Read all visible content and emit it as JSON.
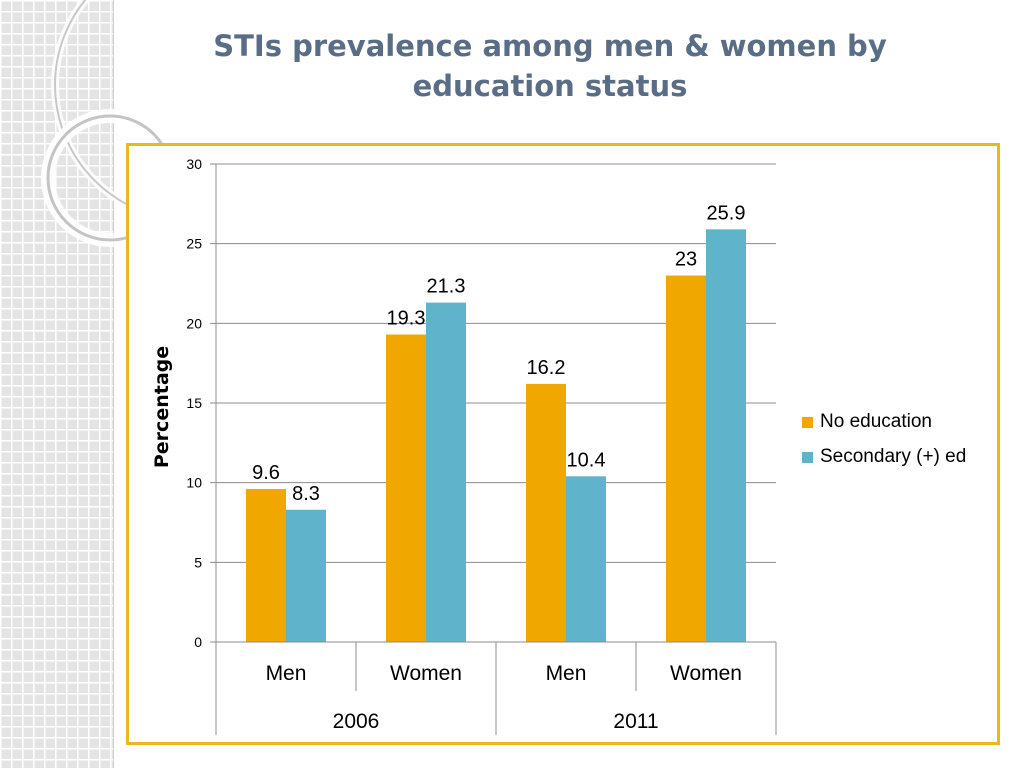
{
  "slide": {
    "title": "STIs prevalence among men & women by education status"
  },
  "colors": {
    "no_education": "#f0a800",
    "secondary": "#5fb4cc",
    "frame": "#e8b91e",
    "title": "#5a6d86"
  },
  "chart_data": {
    "type": "bar",
    "title": "",
    "xlabel": "",
    "ylabel": "Percentage",
    "ylim": [
      0,
      30
    ],
    "yticks": [
      0,
      5,
      10,
      15,
      20,
      25,
      30
    ],
    "grid": true,
    "legend_position": "right",
    "categories": [
      "Men",
      "Women",
      "Men",
      "Women"
    ],
    "groups": [
      {
        "label": "2006",
        "categories": [
          "Men",
          "Women"
        ]
      },
      {
        "label": "2011",
        "categories": [
          "Men",
          "Women"
        ]
      }
    ],
    "series": [
      {
        "name": "No education",
        "values": [
          9.6,
          19.3,
          16.2,
          23
        ]
      },
      {
        "name": "Secondary (+) ed",
        "values": [
          8.3,
          21.3,
          10.4,
          25.9
        ]
      }
    ],
    "data_labels": [
      [
        "9.6",
        "19.3",
        "16.2",
        "23"
      ],
      [
        "8.3",
        "21.3",
        "10.4",
        "25.9"
      ]
    ]
  }
}
